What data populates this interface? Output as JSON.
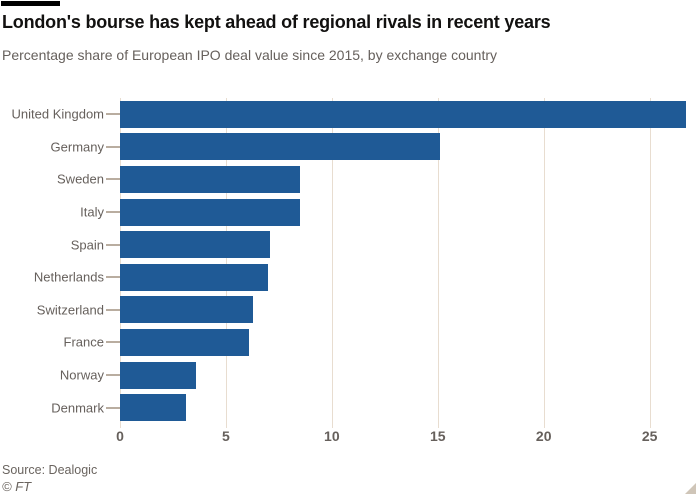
{
  "chart_data": {
    "type": "bar",
    "orientation": "horizontal",
    "title": "London's bourse has kept ahead of regional rivals in recent years",
    "subtitle": "Percentage share of European IPO deal value since 2015, by exchange country",
    "categories": [
      "United Kingdom",
      "Germany",
      "Sweden",
      "Italy",
      "Spain",
      "Netherlands",
      "Switzerland",
      "France",
      "Norway",
      "Denmark"
    ],
    "values": [
      26.7,
      15.1,
      8.5,
      8.5,
      7.1,
      7.0,
      6.3,
      6.1,
      3.6,
      3.1
    ],
    "xlabel": "",
    "ylabel": "",
    "xlim": [
      0,
      27
    ],
    "xticks": [
      0,
      5,
      10,
      15,
      20,
      25
    ],
    "grid": "vertical",
    "legend": "none"
  },
  "footer": {
    "source": "Source: Dealogic",
    "copyright": "© FT"
  },
  "colors": {
    "bar": "#1f5a96",
    "gridline": "#e8ddd0",
    "category_tick": "#b9ada0",
    "text_muted": "#66605c",
    "title_text": "#121110",
    "accent_bar": "#000000",
    "background": "#ffffff",
    "resize_corner": "#cfc5b8"
  }
}
